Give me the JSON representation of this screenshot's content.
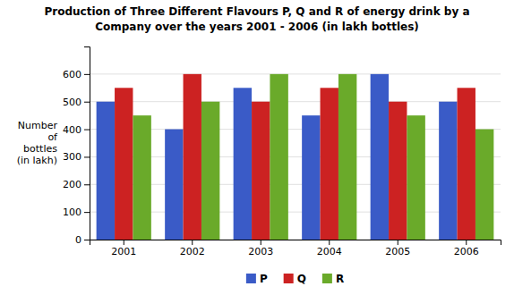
{
  "chart_data": {
    "type": "bar",
    "title": "Production of Three Different Flavours P, Q and R of energy drink by a",
    "subtitle": "Company over the years 2001 - 2006 (in lakh bottles)",
    "ylabel": "Number\nof\nbottles\n(in lakh)",
    "categories": [
      "2001",
      "2002",
      "2003",
      "2004",
      "2005",
      "2006"
    ],
    "series": [
      {
        "name": "P",
        "color": "#3a5bc7",
        "values": [
          500,
          400,
          550,
          450,
          600,
          500
        ]
      },
      {
        "name": "Q",
        "color": "#cc2222",
        "values": [
          550,
          600,
          500,
          550,
          500,
          550
        ]
      },
      {
        "name": "R",
        "color": "#6aaa2a",
        "values": [
          450,
          500,
          600,
          600,
          450,
          400
        ]
      }
    ],
    "ylim": [
      0,
      700
    ],
    "yticks": [
      0,
      100,
      200,
      300,
      400,
      500,
      600
    ],
    "grid": true,
    "legend": "bottom"
  }
}
